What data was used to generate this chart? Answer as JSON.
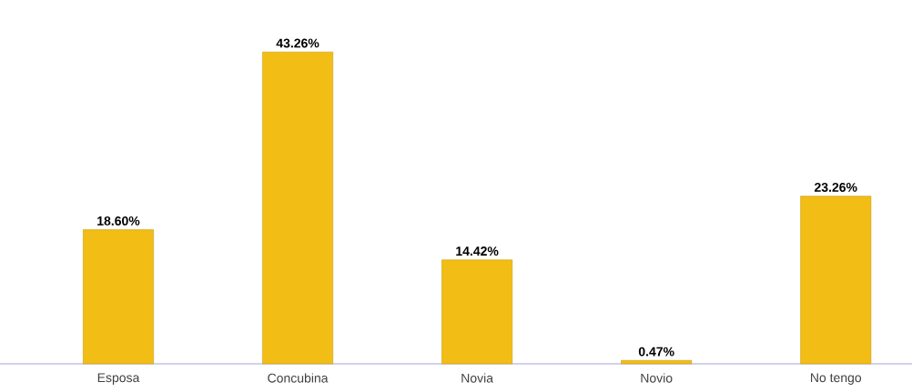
{
  "chart_data": {
    "type": "bar",
    "categories": [
      "Esposa",
      "Concubina",
      "Novia",
      "Novio",
      "No tengo"
    ],
    "values": [
      18.6,
      43.26,
      14.42,
      0.47,
      23.26
    ],
    "value_labels": [
      "18.60%",
      "43.26%",
      "14.42%",
      "0.47%",
      "23.26%"
    ],
    "color": "#f2bd14"
  }
}
